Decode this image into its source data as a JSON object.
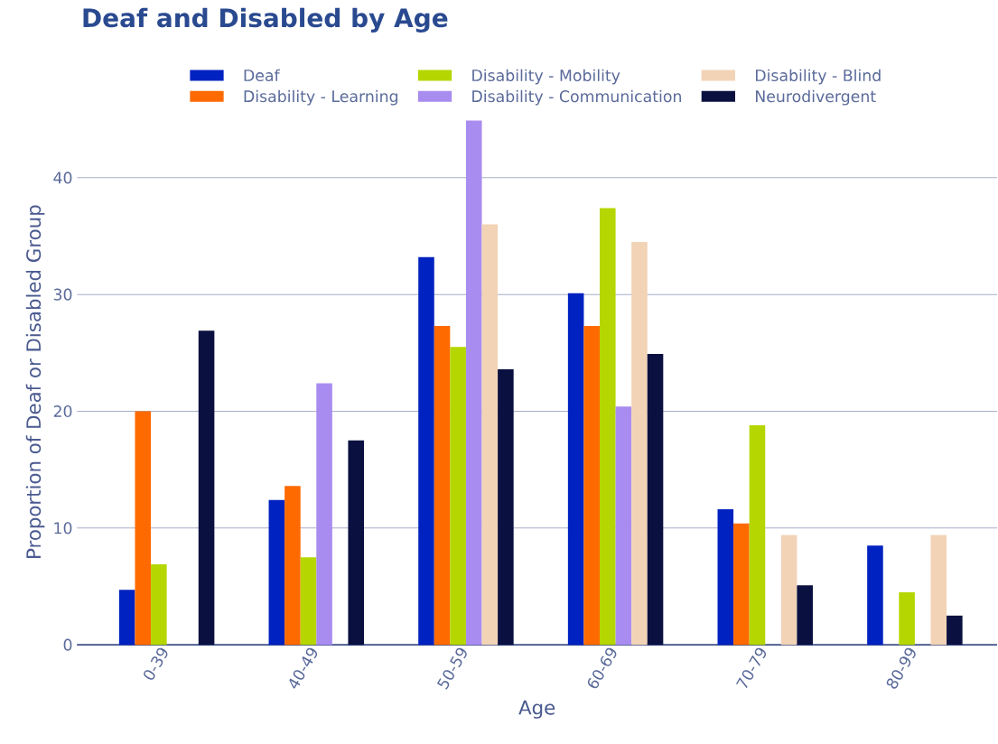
{
  "chart_data": {
    "type": "bar",
    "title": "Deaf and Disabled by Age",
    "xlabel": "Age",
    "ylabel": "Proportion of Deaf or Disabled Group",
    "categories": [
      "0-39",
      "40-49",
      "50-59",
      "60-69",
      "70-79",
      "80-99"
    ],
    "series": [
      {
        "name": "Deaf",
        "color": "#0022c0",
        "values": [
          4.7,
          12.4,
          33.2,
          30.1,
          11.6,
          8.5
        ]
      },
      {
        "name": "Disability - Learning",
        "color": "#ff6a00",
        "values": [
          20.0,
          13.6,
          27.3,
          27.3,
          10.4,
          0
        ]
      },
      {
        "name": "Disability - Mobility",
        "color": "#b5d600",
        "values": [
          6.9,
          7.5,
          25.5,
          37.4,
          18.8,
          4.5
        ]
      },
      {
        "name": "Disability - Communication",
        "color": "#a98cf0",
        "values": [
          0,
          22.4,
          44.9,
          20.4,
          0,
          0
        ]
      },
      {
        "name": "Disability - Blind",
        "color": "#f2d3b6",
        "values": [
          0,
          0,
          36.0,
          34.5,
          9.4,
          9.4
        ]
      },
      {
        "name": "Neurodivergent",
        "color": "#0a1040",
        "values": [
          26.9,
          17.5,
          23.6,
          24.9,
          5.1,
          2.5
        ]
      }
    ],
    "ylim": [
      0,
      45
    ],
    "yticks": [
      0,
      10,
      20,
      30,
      40
    ],
    "grid": "y",
    "legend": "top"
  }
}
